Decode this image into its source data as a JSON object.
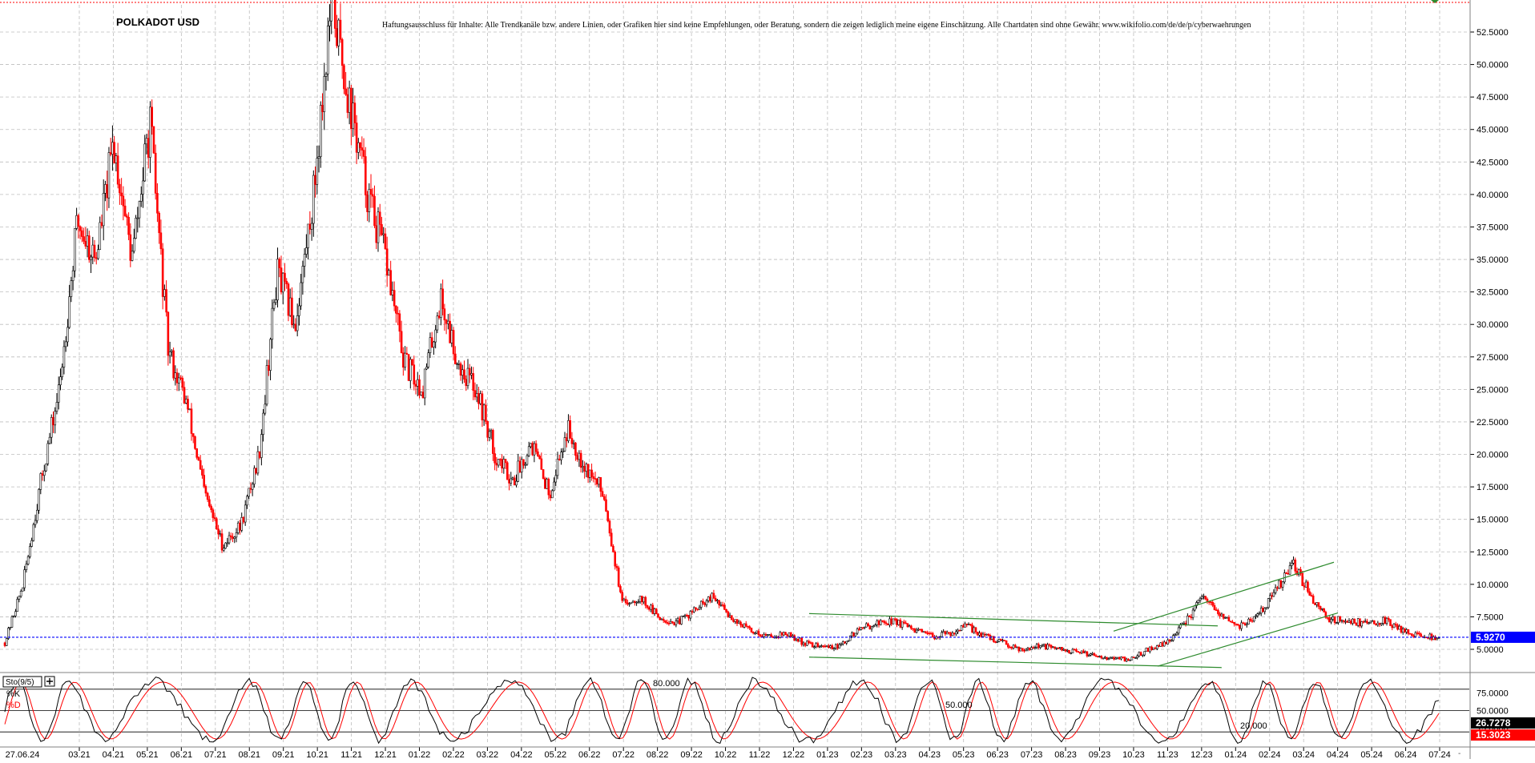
{
  "chart_data": [
    {
      "type": "candlestick",
      "title": "POLKADOT USD",
      "disclaimer": "Haftungsausschluss für Inhalte: Alle Trendkanäle bzw. andere Linien, oder Grafiken hier sind keine Empfehlungen, oder Beratung, sondern die zeigen lediglich meine eigene Einschätzung. Alle Chartdaten sind ohne Gewähr.  www.wikifolio.com/de/de/p/cyberwaehrungen",
      "grid": true,
      "ylim": [
        3.0,
        54.5
      ],
      "y_ticks": [
        "52.5000",
        "50.0000",
        "47.5000",
        "45.0000",
        "42.5000",
        "40.0000",
        "37.5000",
        "35.0000",
        "32.5000",
        "30.0000",
        "27.5000",
        "25.0000",
        "22.5000",
        "20.0000",
        "17.5000",
        "15.0000",
        "12.5000",
        "10.0000",
        "7.5000",
        "5.0000"
      ],
      "y_tick_values": [
        52.5,
        50,
        47.5,
        45,
        42.5,
        40,
        37.5,
        35,
        32.5,
        30,
        27.5,
        25,
        22.5,
        20,
        17.5,
        15,
        12.5,
        10,
        7.5,
        5
      ],
      "x_tick_labels": [
        "27.06.24",
        "03.21",
        "04.21",
        "05.21",
        "06.21",
        "07.21",
        "08.21",
        "09.21",
        "10.21",
        "11.21",
        "12.21",
        "01.22",
        "02.22",
        "03.22",
        "04.22",
        "05.22",
        "06.22",
        "07.22",
        "08.22",
        "09.22",
        "10.22",
        "11.22",
        "12.22",
        "01.23",
        "02.23",
        "03.23",
        "04.23",
        "05.23",
        "06.23",
        "07.23",
        "08.23",
        "09.23",
        "10.23",
        "11.23",
        "12.23",
        "01.24",
        "02.24",
        "03.24",
        "04.24",
        "05.24",
        "06.24",
        "07.24"
      ],
      "last_price": 5.927,
      "last_price_label": "5.9270",
      "price_path": [
        [
          0,
          5.5
        ],
        [
          1,
          10.0
        ],
        [
          2,
          18.0
        ],
        [
          3,
          25.0
        ],
        [
          4,
          38.0
        ],
        [
          5,
          35.0
        ],
        [
          6,
          44.0
        ],
        [
          7,
          35.0
        ],
        [
          8,
          45.5
        ],
        [
          9,
          28.0
        ],
        [
          10,
          24.0
        ],
        [
          11,
          17.0
        ],
        [
          12,
          13.0
        ],
        [
          13,
          14.5
        ],
        [
          14,
          20.0
        ],
        [
          15,
          34.0
        ],
        [
          16,
          30.0
        ],
        [
          17,
          40.0
        ],
        [
          18,
          55.0
        ],
        [
          19,
          47.0
        ],
        [
          20,
          40.0
        ],
        [
          21,
          35.0
        ],
        [
          22,
          27.0
        ],
        [
          23,
          25.0
        ],
        [
          24,
          32.0
        ],
        [
          25,
          27.0
        ],
        [
          26,
          25.0
        ],
        [
          27,
          20.0
        ],
        [
          28,
          18.0
        ],
        [
          29,
          21.0
        ],
        [
          30,
          17.0
        ],
        [
          31,
          22.0
        ],
        [
          32,
          19.0
        ],
        [
          33,
          17.0
        ],
        [
          34,
          8.5
        ],
        [
          35,
          9.0
        ],
        [
          36,
          7.5
        ],
        [
          37,
          7.0
        ],
        [
          38,
          8.0
        ],
        [
          39,
          9.0
        ],
        [
          40,
          7.5
        ],
        [
          41,
          6.5
        ],
        [
          42,
          6.0
        ],
        [
          43,
          6.2
        ],
        [
          44,
          5.5
        ],
        [
          45,
          5.2
        ],
        [
          46,
          5.2
        ],
        [
          47,
          6.5
        ],
        [
          48,
          7.0
        ],
        [
          49,
          7.2
        ],
        [
          50,
          6.5
        ],
        [
          51,
          6.0
        ],
        [
          52,
          6.2
        ],
        [
          53,
          6.8
        ],
        [
          54,
          6.0
        ],
        [
          55,
          5.5
        ],
        [
          56,
          5.0
        ],
        [
          57,
          5.3
        ],
        [
          58,
          5.0
        ],
        [
          59,
          4.8
        ],
        [
          60,
          4.6
        ],
        [
          61,
          4.3
        ],
        [
          62,
          4.2
        ],
        [
          63,
          5.0
        ],
        [
          64,
          5.5
        ],
        [
          65,
          7.0
        ],
        [
          66,
          9.0
        ],
        [
          67,
          7.5
        ],
        [
          68,
          6.8
        ],
        [
          69,
          7.5
        ],
        [
          70,
          9.5
        ],
        [
          71,
          11.5
        ],
        [
          72,
          9.0
        ],
        [
          73,
          7.3
        ],
        [
          74,
          7.2
        ],
        [
          75,
          7.0
        ],
        [
          76,
          7.2
        ],
        [
          77,
          6.5
        ],
        [
          78,
          6.0
        ],
        [
          79,
          5.9
        ]
      ],
      "trendlines": [
        {
          "color": "#2e8b2e",
          "x0": 1010,
          "y0": 7.75,
          "x1": 1520,
          "y1": 6.8
        },
        {
          "color": "#2e8b2e",
          "x0": 1010,
          "y0": 4.4,
          "x1": 1525,
          "y1": 3.6
        },
        {
          "color": "#2e8b2e",
          "x0": 1390,
          "y0": 6.4,
          "x1": 1665,
          "y1": 11.7
        },
        {
          "color": "#2e8b2e",
          "x0": 1445,
          "y0": 3.7,
          "x1": 1670,
          "y1": 7.8
        }
      ]
    },
    {
      "type": "line",
      "indicator": "Sto(9/5)",
      "series": [
        {
          "name": "%K",
          "color": "#000000"
        },
        {
          "name": "%D",
          "color": "#ff0000"
        }
      ],
      "levels": [
        "80.000",
        "50.000",
        "20.000"
      ],
      "level_values": [
        80,
        50,
        20
      ],
      "y_ticks": [
        "75.0000",
        "50.0000",
        "25.0000"
      ],
      "y_tick_values": [
        75,
        50,
        25
      ],
      "ylim": [
        0,
        100
      ],
      "k_last_label": "26.7278",
      "d_last_label": "15.3023",
      "k_last": 26.7278,
      "d_last": 15.3023
    }
  ],
  "colors": {
    "up": "#000000",
    "down": "#ff0000",
    "price_line": "#0000ff",
    "price_label_bg": "#0000ff",
    "k_label_bg": "#000000",
    "d_label_bg": "#ff0000",
    "grid": "#bdbdbd",
    "trend": "#2e8b2e"
  }
}
